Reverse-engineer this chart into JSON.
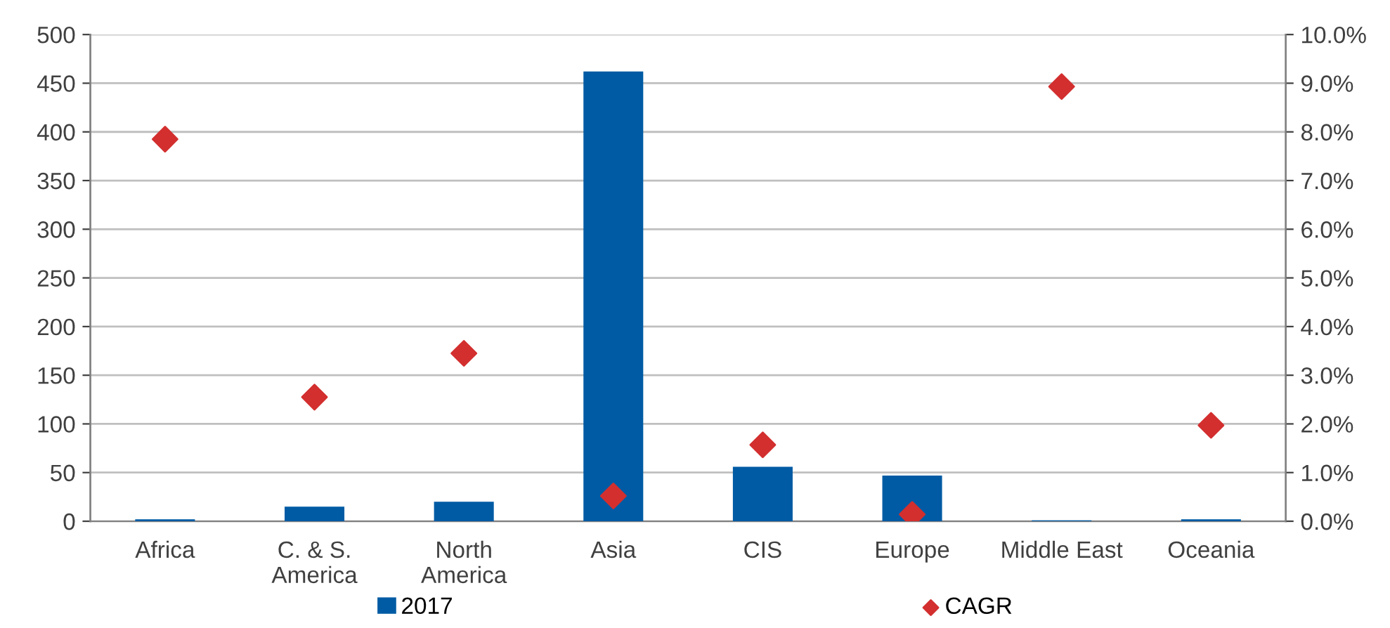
{
  "chart_data": {
    "type": "bar",
    "categories": [
      "Africa",
      "C. & S.\nAmerica",
      "North\nAmerica",
      "Asia",
      "CIS",
      "Europe",
      "Middle East",
      "Oceania"
    ],
    "series": [
      {
        "name": "2017",
        "color": "#005ba4",
        "values": [
          2,
          15,
          20,
          462,
          56,
          47,
          1,
          2
        ]
      },
      {
        "name": "CAGR",
        "type": "scatter",
        "axis": "y2",
        "marker": "diamond",
        "color": "#d32f2f",
        "values": [
          7.85,
          2.55,
          3.45,
          0.52,
          1.57,
          0.14,
          8.93,
          1.97
        ]
      }
    ],
    "ylim": [
      0,
      500
    ],
    "yticks": [
      0,
      50,
      100,
      150,
      200,
      250,
      300,
      350,
      400,
      450,
      500
    ],
    "y2lim": [
      0,
      10
    ],
    "y2ticks": [
      {
        "value": 0,
        "label": "0.0%"
      },
      {
        "value": 1,
        "label": "1.0%"
      },
      {
        "value": 2,
        "label": "2.0%"
      },
      {
        "value": 3,
        "label": "3.0%"
      },
      {
        "value": 4,
        "label": "4.0%"
      },
      {
        "value": 5,
        "label": "5.0%"
      },
      {
        "value": 6,
        "label": "6.0%"
      },
      {
        "value": 7,
        "label": "7.0%"
      },
      {
        "value": 8,
        "label": "8.0%"
      },
      {
        "value": 9,
        "label": "9.0%"
      },
      {
        "value": 10,
        "label": "10.0%"
      }
    ],
    "grid": "y",
    "legend": "bottom"
  }
}
